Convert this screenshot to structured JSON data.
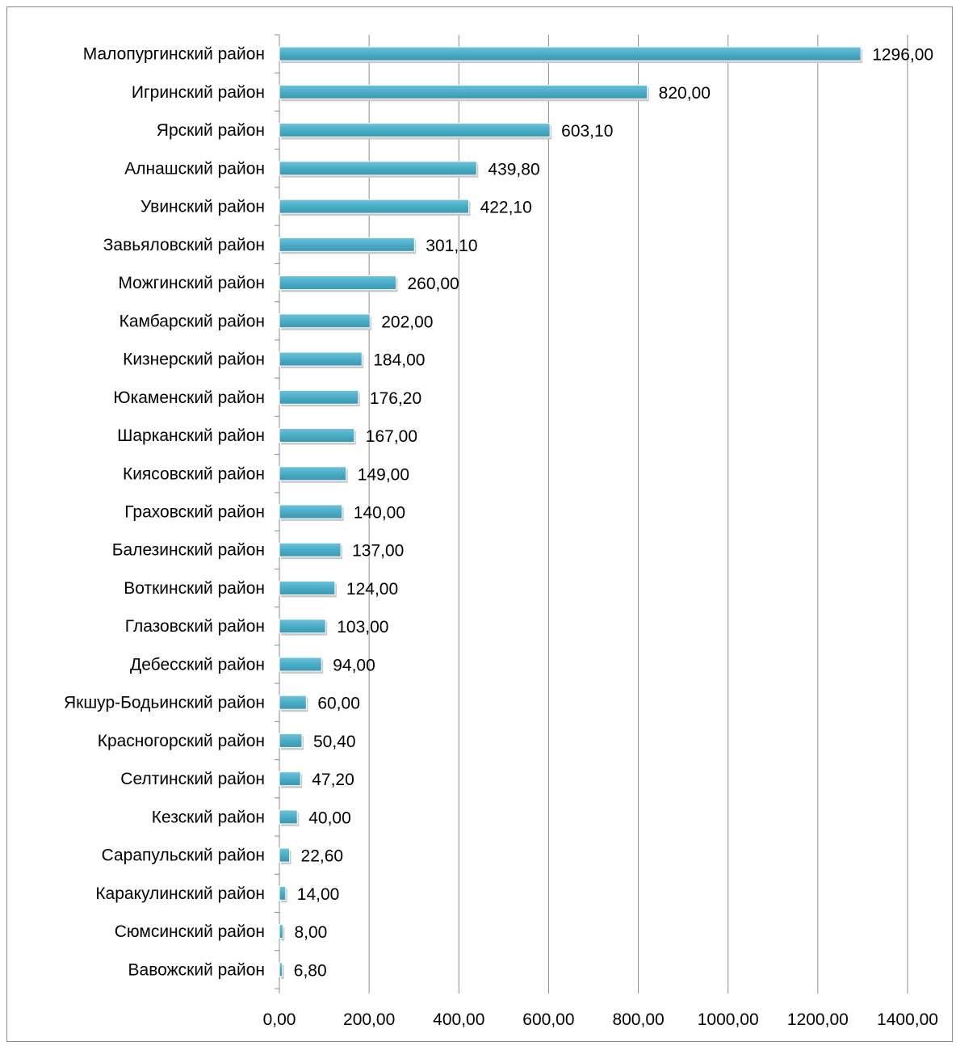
{
  "chart_data": {
    "type": "bar",
    "orientation": "horizontal",
    "title": "",
    "xlabel": "",
    "ylabel": "",
    "xlim": [
      0,
      1400
    ],
    "grid": true,
    "legend": "none",
    "bar_color": "#4bacc6",
    "categories": [
      "Малопургинский район",
      "Игринский район",
      "Ярский район",
      "Алнашский район",
      "Увинский район",
      "Завьяловский район",
      "Можгинский район",
      "Камбарский район",
      "Кизнерский район",
      "Юкаменский район",
      "Шарканский район",
      "Киясовский район",
      "Граховский район",
      "Балезинский район",
      "Воткинский район",
      "Глазовский район",
      "Дебесский район",
      "Якшур-Бодьинский район",
      "Красногорский район",
      "Селтинский район",
      "Кезский район",
      "Сарапульский район",
      "Каракулинский район",
      "Сюмсинский район",
      "Вавожский район"
    ],
    "values": [
      1296,
      820,
      603.1,
      439.8,
      422.1,
      301.1,
      260,
      202,
      184,
      176.2,
      167,
      149,
      140,
      137,
      124,
      103,
      94,
      60,
      50.4,
      47.2,
      40,
      22.6,
      14,
      8,
      6.8
    ],
    "value_labels": [
      "1296,00",
      "820,00",
      "603,10",
      "439,80",
      "422,10",
      "301,10",
      "260,00",
      "202,00",
      "184,00",
      "176,20",
      "167,00",
      "149,00",
      "140,00",
      "137,00",
      "124,00",
      "103,00",
      "94,00",
      "60,00",
      "50,40",
      "47,20",
      "40,00",
      "22,60",
      "14,00",
      "8,00",
      "6,80"
    ],
    "x_ticks": [
      0,
      200,
      400,
      600,
      800,
      1000,
      1200,
      1400
    ],
    "x_tick_labels": [
      "0,00",
      "200,00",
      "400,00",
      "600,00",
      "800,00",
      "1000,00",
      "1200,00",
      "1400,00"
    ]
  }
}
